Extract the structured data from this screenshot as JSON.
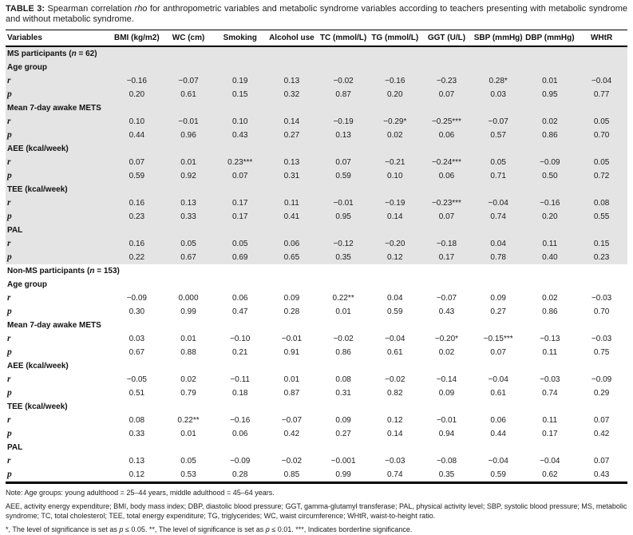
{
  "title": {
    "parts": [
      {
        "t": "TABLE 3:",
        "b": true
      },
      {
        "t": " Spearman correlation "
      },
      {
        "t": "rho",
        "i": true
      },
      {
        "t": " for anthropometric variables and metabolic syndrome variables according to teachers presenting with metabolic syndrome and without metabolic syndrome."
      }
    ]
  },
  "table": {
    "columns": [
      "Variables",
      "BMI (kg/m2)",
      "WC (cm)",
      "Smoking",
      "Alcohol use",
      "TC (mmol/L)",
      "TG (mmol/L)",
      "GGT (U/L)",
      "SBP (mmHg)",
      "DBP (mmHg)",
      "WHtR"
    ],
    "row_labels": {
      "r": "r",
      "p": "p"
    },
    "sections": [
      {
        "id": "ms-participants",
        "shaded": true,
        "header_parts": [
          {
            "t": "MS participants ("
          },
          {
            "t": "n",
            "i": true
          },
          {
            "t": " = 62)"
          }
        ],
        "variables": [
          {
            "name": "Age group",
            "r": [
              "−0.16",
              "−0.07",
              "0.19",
              "0.13",
              "−0.02",
              "−0.16",
              "−0.23",
              "0.28*",
              "0.01",
              "−0.04"
            ],
            "p": [
              "0.20",
              "0.61",
              "0.15",
              "0.32",
              "0.87",
              "0.20",
              "0.07",
              "0.03",
              "0.95",
              "0.77"
            ]
          },
          {
            "name": "Mean 7-day awake METS",
            "r": [
              "0.10",
              "−0.01",
              "0.10",
              "0.14",
              "−0.19",
              "−0.29*",
              "−0.25***",
              "−0.07",
              "0.02",
              "0.05"
            ],
            "p": [
              "0.44",
              "0.96",
              "0.43",
              "0.27",
              "0.13",
              "0.02",
              "0.06",
              "0.57",
              "0.86",
              "0.70"
            ]
          },
          {
            "name": "AEE (kcal/week)",
            "r": [
              "0.07",
              "0.01",
              "0.23***",
              "0.13",
              "0.07",
              "−0.21",
              "−0.24***",
              "0.05",
              "−0.09",
              "0.05"
            ],
            "p": [
              "0.59",
              "0.92",
              "0.07",
              "0.31",
              "0.59",
              "0.10",
              "0.06",
              "0.71",
              "0.50",
              "0.72"
            ]
          },
          {
            "name": "TEE (kcal/week)",
            "r": [
              "0.16",
              "0.13",
              "0.17",
              "0.11",
              "−0.01",
              "−0.19",
              "−0.23***",
              "−0.04",
              "−0.16",
              "0.08"
            ],
            "p": [
              "0.23",
              "0.33",
              "0.17",
              "0.41",
              "0.95",
              "0.14",
              "0.07",
              "0.74",
              "0.20",
              "0.55"
            ]
          },
          {
            "name": "PAL",
            "r": [
              "0.16",
              "0.05",
              "0.05",
              "0.06",
              "−0.12",
              "−0.20",
              "−0.18",
              "0.04",
              "0.11",
              "0.15"
            ],
            "p": [
              "0.22",
              "0.67",
              "0.69",
              "0.65",
              "0.35",
              "0.12",
              "0.17",
              "0.78",
              "0.40",
              "0.23"
            ]
          }
        ]
      },
      {
        "id": "non-ms-participants",
        "shaded": false,
        "header_parts": [
          {
            "t": "Non-MS participants ("
          },
          {
            "t": "n",
            "i": true
          },
          {
            "t": " = 153)"
          }
        ],
        "variables": [
          {
            "name": "Age group",
            "r": [
              "−0.09",
              "0.000",
              "0.06",
              "0.09",
              "0.22**",
              "0.04",
              "−0.07",
              "0.09",
              "0.02",
              "−0.03"
            ],
            "p": [
              "0.30",
              "0.99",
              "0.47",
              "0.28",
              "0.01",
              "0.59",
              "0.43",
              "0.27",
              "0.86",
              "0.70"
            ]
          },
          {
            "name": "Mean 7-day awake METS",
            "r": [
              "0.03",
              "0.01",
              "−0.10",
              "−0.01",
              "−0.02",
              "−0.04",
              "−0.20*",
              "−0.15***",
              "−0.13",
              "−0.03"
            ],
            "p": [
              "0.67",
              "0.88",
              "0.21",
              "0.91",
              "0.86",
              "0.61",
              "0.02",
              "0.07",
              "0.11",
              "0.75"
            ]
          },
          {
            "name": "AEE (kcal/week)",
            "r": [
              "−0.05",
              "0.02",
              "−0.11",
              "0.01",
              "0.08",
              "−0.02",
              "−0.14",
              "−0.04",
              "−0.03",
              "−0.09"
            ],
            "p": [
              "0.51",
              "0.79",
              "0.18",
              "0.87",
              "0.31",
              "0.82",
              "0.09",
              "0.61",
              "0.74",
              "0.29"
            ]
          },
          {
            "name": "TEE (kcal/week)",
            "r": [
              "0.08",
              "0.22**",
              "−0.16",
              "−0.07",
              "0.09",
              "0.12",
              "−0.01",
              "0.06",
              "0.11",
              "0.07"
            ],
            "p": [
              "0.33",
              "0.01",
              "0.06",
              "0.42",
              "0.27",
              "0.14",
              "0.94",
              "0.44",
              "0.17",
              "0.42"
            ]
          },
          {
            "name": "PAL",
            "r": [
              "0.13",
              "0.05",
              "−0.09",
              "−0.02",
              "−0.001",
              "−0.03",
              "−0.08",
              "−0.04",
              "−0.04",
              "0.07"
            ],
            "p": [
              "0.12",
              "0.53",
              "0.28",
              "0.85",
              "0.99",
              "0.74",
              "0.35",
              "0.59",
              "0.62",
              "0.43"
            ]
          }
        ]
      }
    ]
  },
  "notes": {
    "age_groups": "Note: Age groups: young adulthood = 25–44 years, middle adulthood = 45–64 years.",
    "abbreviations": "AEE, activity energy expenditure; BMI, body mass index; DBP, diastolic blood pressure; GGT, gamma-glutamyl transferase; PAL, physical activity level; SBP, systolic blood pressure; MS, metabolic syndrome; TC, total cholesterol; TEE, total energy expenditure; TG, triglycerides; WC, waist circumference; WHtR, waist-to-height ratio.",
    "significance_parts": [
      {
        "t": "*, The level of significance is set as "
      },
      {
        "t": "p",
        "i": true
      },
      {
        "t": " ≤ 0.05. **, The level of significance is set as "
      },
      {
        "t": "p",
        "i": true
      },
      {
        "t": " ≤ 0.01. ***, Indicates borderline significance."
      }
    ]
  }
}
